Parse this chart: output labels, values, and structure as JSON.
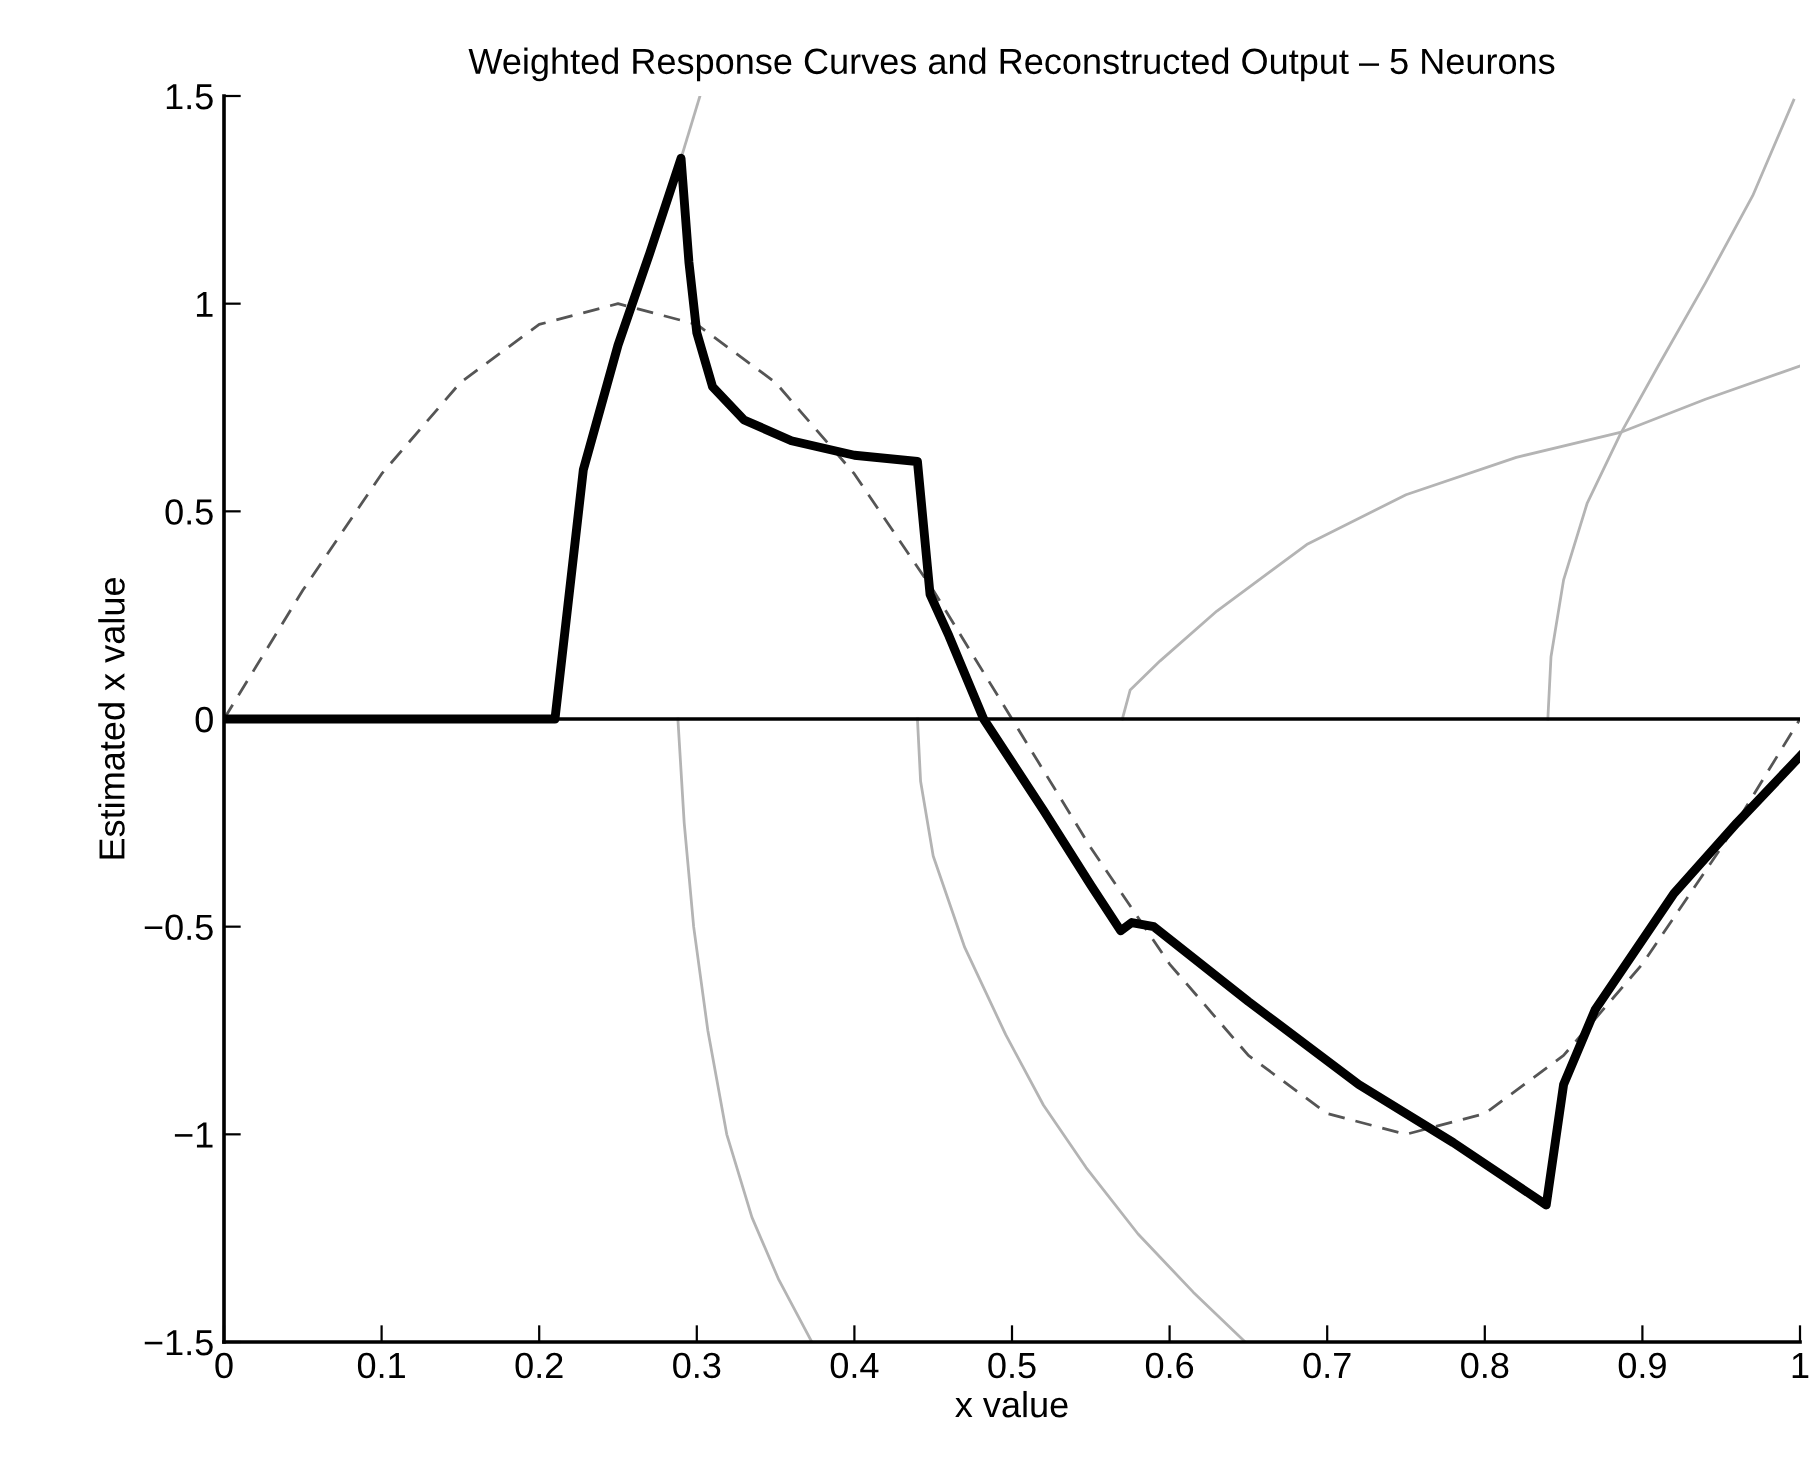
{
  "chart_data": {
    "type": "line",
    "title": "Weighted Response Curves and Reconstructed Output – 5 Neurons",
    "xlabel": "x value",
    "ylabel": "Estimated x value",
    "xlim": [
      0,
      1
    ],
    "ylim": [
      -1.5,
      1.5
    ],
    "xticks": [
      0,
      0.1,
      0.2,
      0.3,
      0.4,
      0.5,
      0.6,
      0.7,
      0.8,
      0.9,
      1
    ],
    "yticks": [
      {
        "value": -1.5,
        "label": "−1.5"
      },
      {
        "value": -1,
        "label": "−1"
      },
      {
        "value": -0.5,
        "label": "−0.5"
      },
      0,
      0.5,
      1,
      1.5
    ],
    "grid": false,
    "legend": false,
    "marker": "none",
    "ref_lines": [
      {
        "axis": "y",
        "value": 0,
        "color": "#000000",
        "line_style": "solid"
      }
    ],
    "series": [
      {
        "color": "#b4b4b4",
        "line_style": "solid",
        "x": [
          0.29,
          0.302
        ],
        "values": [
          1.35,
          1.5
        ]
      },
      {
        "color": "#b4b4b4",
        "line_style": "solid",
        "x": [
          0.288,
          0.292,
          0.298,
          0.307,
          0.319,
          0.335,
          0.352,
          0.373
        ],
        "values": [
          0,
          -0.25,
          -0.5,
          -0.75,
          -1,
          -1.2,
          -1.35,
          -1.5
        ]
      },
      {
        "color": "#b4b4b4",
        "line_style": "solid",
        "x": [
          0.44,
          0.442,
          0.45,
          0.47,
          0.496,
          0.52,
          0.547,
          0.58,
          0.615,
          0.648
        ],
        "values": [
          0,
          -0.15,
          -0.33,
          -0.55,
          -0.76,
          -0.93,
          -1.08,
          -1.24,
          -1.38,
          -1.5
        ]
      },
      {
        "color": "#b4b4b4",
        "line_style": "solid",
        "x": [
          0.57,
          0.575,
          0.594,
          0.63,
          0.687,
          0.75,
          0.82,
          0.886,
          0.94,
          1.0
        ],
        "values": [
          0,
          0.07,
          0.14,
          0.26,
          0.42,
          0.54,
          0.63,
          0.69,
          0.77,
          0.85
        ]
      },
      {
        "color": "#b4b4b4",
        "line_style": "solid",
        "x": [
          0.84,
          0.842,
          0.85,
          0.865,
          0.886,
          0.91,
          0.94,
          0.97,
          0.996
        ],
        "values": [
          0,
          0.15,
          0.335,
          0.52,
          0.686,
          0.85,
          1.05,
          1.26,
          1.49
        ]
      },
      {
        "color": "#555555",
        "line_style": "dashed",
        "x": [
          0,
          0.05,
          0.1,
          0.15,
          0.2,
          0.25,
          0.3,
          0.35,
          0.4,
          0.45,
          0.5,
          0.55,
          0.6,
          0.65,
          0.7,
          0.75,
          0.8,
          0.85,
          0.9,
          0.95,
          1.0
        ],
        "values": [
          0,
          0.31,
          0.59,
          0.81,
          0.95,
          1,
          0.95,
          0.81,
          0.59,
          0.31,
          0,
          -0.31,
          -0.59,
          -0.81,
          -0.95,
          -1,
          -0.95,
          -0.81,
          -0.59,
          -0.31,
          0
        ]
      },
      {
        "color": "#000000",
        "line_style": "solid",
        "x": [
          0,
          0.21,
          0.228,
          0.25,
          0.27,
          0.29,
          0.295,
          0.3,
          0.31,
          0.33,
          0.36,
          0.4,
          0.44,
          0.448,
          0.46,
          0.482,
          0.52,
          0.55,
          0.569,
          0.576,
          0.59,
          0.65,
          0.72,
          0.78,
          0.839,
          0.85,
          0.87,
          0.92,
          0.96,
          1.0
        ],
        "values": [
          0,
          0,
          0.6,
          0.9,
          1.12,
          1.35,
          1.1,
          0.93,
          0.8,
          0.72,
          0.67,
          0.635,
          0.62,
          0.3,
          0.2,
          0,
          -0.22,
          -0.4,
          -0.51,
          -0.49,
          -0.5,
          -0.68,
          -0.88,
          -1.02,
          -1.17,
          -0.88,
          -0.7,
          -0.42,
          -0.25,
          -0.09
        ]
      }
    ]
  }
}
